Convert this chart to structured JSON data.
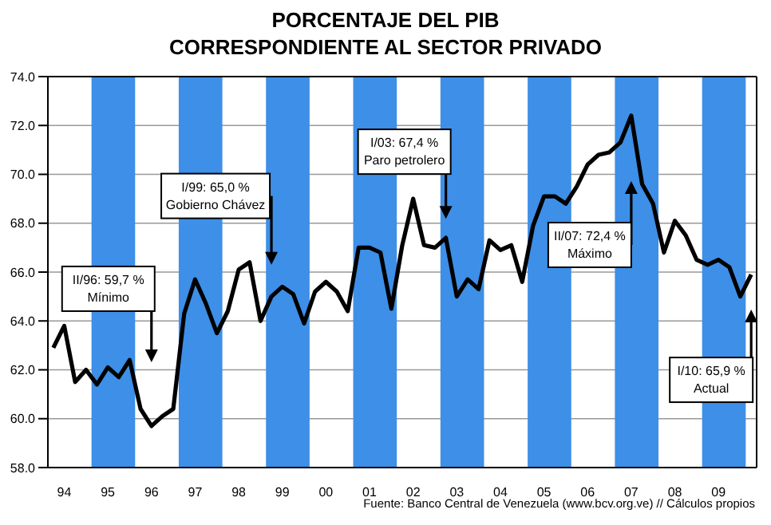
{
  "chart_data": {
    "type": "line",
    "title": "PORCENTAJE DEL PIB",
    "subtitle": "CORRESPONDIENTE AL SECTOR PRIVADO",
    "categories": [
      null,
      "94",
      null,
      null,
      null,
      "95",
      null,
      null,
      null,
      "96",
      null,
      null,
      null,
      "97",
      null,
      null,
      null,
      "98",
      null,
      null,
      null,
      "99",
      null,
      null,
      null,
      "00",
      null,
      null,
      null,
      "01",
      null,
      null,
      null,
      "02",
      null,
      null,
      null,
      "03",
      null,
      null,
      null,
      "04",
      null,
      null,
      null,
      "05",
      null,
      null,
      null,
      "06",
      null,
      null,
      null,
      "07",
      null,
      null,
      null,
      "08",
      null,
      null,
      null,
      "09",
      null,
      null,
      null
    ],
    "series": [
      {
        "color": "#000000",
        "values": [
          62.9,
          63.8,
          61.5,
          62.0,
          61.4,
          62.1,
          61.7,
          62.4,
          60.4,
          59.7,
          60.1,
          60.4,
          64.3,
          65.7,
          64.7,
          63.5,
          64.4,
          66.1,
          66.4,
          64.0,
          65.0,
          65.4,
          65.1,
          63.9,
          65.2,
          65.6,
          65.2,
          64.4,
          67.0,
          67.0,
          66.8,
          64.5,
          67.1,
          69.0,
          67.1,
          67.0,
          67.4,
          65.0,
          65.7,
          65.3,
          67.3,
          66.9,
          67.1,
          65.6,
          67.9,
          69.1,
          69.1,
          68.8,
          69.5,
          70.4,
          70.8,
          70.9,
          71.3,
          72.4,
          69.6,
          68.8,
          66.8,
          68.1,
          67.5,
          66.5,
          66.3,
          66.5,
          66.2,
          65.0,
          65.9
        ]
      }
    ],
    "ylim": [
      58,
      74
    ],
    "yticks": [
      {
        "value": 58,
        "label": "58.0"
      },
      {
        "value": 60,
        "label": "60.0"
      },
      {
        "value": 62,
        "label": "62.0"
      },
      {
        "value": 64,
        "label": "64.0"
      },
      {
        "value": 66,
        "label": "66.0"
      },
      {
        "value": 68,
        "label": "68.0"
      },
      {
        "value": 70,
        "label": "70.0"
      },
      {
        "value": 72,
        "label": "72.0"
      },
      {
        "value": 74,
        "label": "74.0"
      }
    ],
    "grid": "y",
    "annotations": [
      "II/96: 59,7 %\nMínimo",
      "I/99: 65,0 %\nGobierno Chávez",
      "I/03: 67,4 %\nParo petrolero",
      "II/07: 72,4 %\nMáximo",
      "I/10: 65,9 %\nActual",
      "Fuente: Banco Central de Venezuela (www.bcv.org.ve) // Cálculos propios"
    ]
  }
}
